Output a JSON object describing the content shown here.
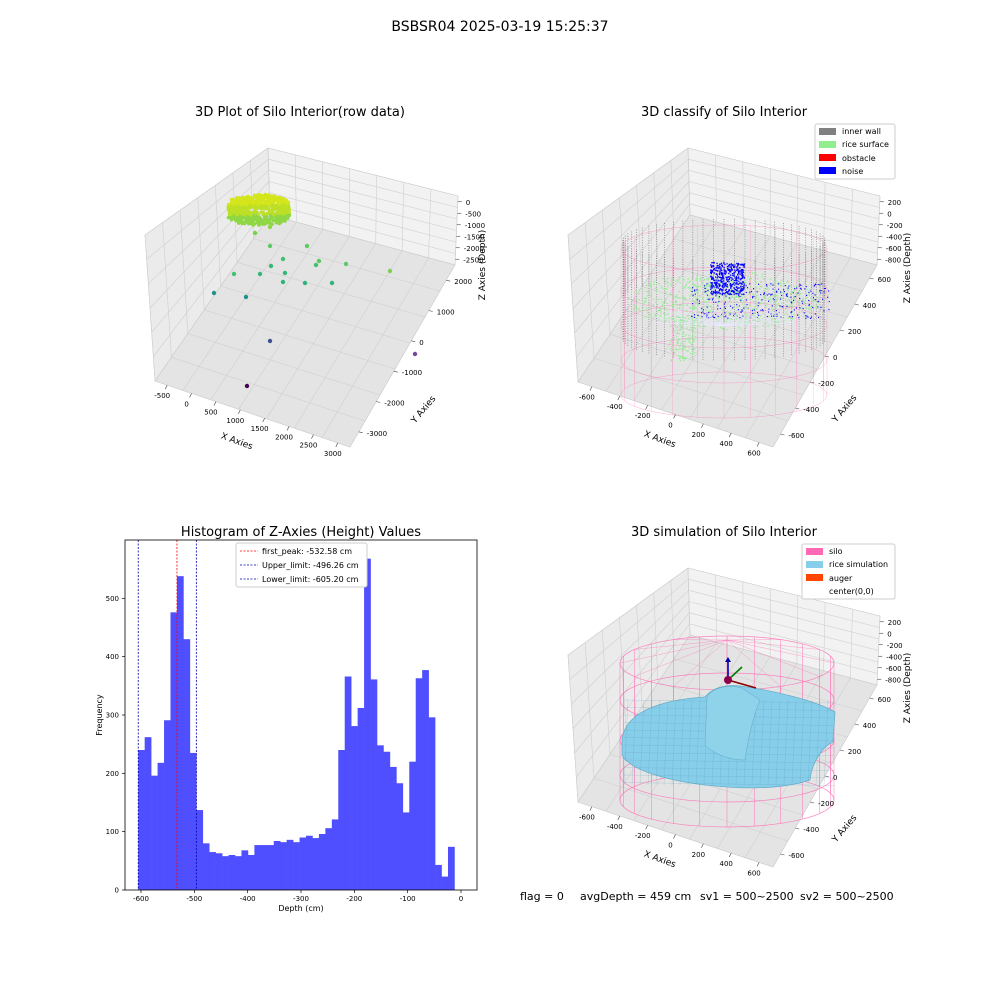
{
  "figure": {
    "suptitle": "BSBSR04 2025-03-19 15:25:37",
    "footer": {
      "flag": "flag = 0",
      "avg_depth": "avgDepth = 459 cm",
      "sv1": "sv1 = 500~2500",
      "sv2": "sv2 = 500~2500"
    }
  },
  "colors": {
    "inner_wall": "#808080",
    "rice_surface": "#90ee90",
    "obstacle": "#ff0000",
    "noise": "#0000ff",
    "silo": "#ff69b4",
    "rice_simulation": "#87ceeb",
    "auger": "#ff4500",
    "histogram_bar": "#4f4fff",
    "first_peak_line": "#ff0000",
    "limit_line": "#0000aa"
  },
  "chart_data": [
    {
      "type": "scatter",
      "title": "3D Plot of Silo Interior(row data)",
      "xlabel": "X Axies",
      "ylabel": "Y Axies",
      "zlabel": "Z Axies (Depth)",
      "x_ticks": [
        "-500",
        "0",
        "500",
        "1000",
        "1500",
        "2000",
        "2500",
        "3000"
      ],
      "y_ticks": [
        "2000",
        "1000",
        "0",
        "-1000",
        "-2000",
        "-3000"
      ],
      "z_ticks": [
        "0",
        "-500",
        "-1000",
        "-1500",
        "-2000",
        "-2500"
      ]
    },
    {
      "type": "scatter",
      "title": "3D classify of Silo Interior",
      "xlabel": "X Axies",
      "ylabel": "Y Axies",
      "zlabel": "Z Axies (Depth)",
      "x_ticks": [
        "-600",
        "-400",
        "-200",
        "0",
        "200",
        "400",
        "600"
      ],
      "y_ticks": [
        "600",
        "400",
        "200",
        "0",
        "-200",
        "-400",
        "-600"
      ],
      "z_ticks": [
        "200",
        "0",
        "-200",
        "-400",
        "-600",
        "-800"
      ],
      "legend": [
        "inner wall",
        "rice surface",
        "obstacle",
        "noise"
      ],
      "legend_position": "top-right"
    },
    {
      "type": "bar",
      "title": "Histogram of Z-Axies (Height) Values",
      "xlabel": "Depth (cm)",
      "ylabel": "Frequency",
      "xlim": [
        -630,
        30
      ],
      "ylim": [
        0,
        600
      ],
      "x_ticks": [
        "-600",
        "-500",
        "-400",
        "-300",
        "-200",
        "-100",
        "0"
      ],
      "y_ticks": [
        "0",
        "100",
        "200",
        "300",
        "400",
        "500"
      ],
      "bin_start": -605.2,
      "bin_width": 12.1,
      "values": [
        240,
        262,
        196,
        218,
        291,
        476,
        538,
        430,
        235,
        137,
        80,
        65,
        63,
        58,
        60,
        58,
        68,
        60,
        77,
        77,
        77,
        84,
        82,
        86,
        82,
        90,
        93,
        89,
        96,
        106,
        121,
        240,
        366,
        281,
        312,
        568,
        361,
        248,
        237,
        211,
        183,
        133,
        220,
        363,
        377,
        296,
        43,
        23,
        74
      ],
      "lines": [
        {
          "label": "first_peak: -532.58 cm",
          "x": -532.58,
          "color": "#ff0000"
        },
        {
          "label": "Upper_limit: -496.26 cm",
          "x": -496.26,
          "color": "#0000aa"
        },
        {
          "label": "Lower_limit: -605.20 cm",
          "x": -605.2,
          "color": "#0000aa"
        }
      ],
      "legend_position": "top-center"
    },
    {
      "type": "scatter",
      "title": "3D simulation of Silo Interior",
      "xlabel": "X Axies",
      "ylabel": "Y Axies",
      "zlabel": "Z Axies (Depth)",
      "x_ticks": [
        "-600",
        "-400",
        "-200",
        "0",
        "200",
        "400",
        "600"
      ],
      "y_ticks": [
        "600",
        "400",
        "200",
        "0",
        "-200",
        "-400",
        "-600"
      ],
      "z_ticks": [
        "200",
        "0",
        "-200",
        "-400",
        "-600",
        "-800"
      ],
      "legend": [
        "silo",
        "rice simulation",
        "auger",
        "center(0,0)"
      ],
      "legend_position": "top-right"
    }
  ]
}
